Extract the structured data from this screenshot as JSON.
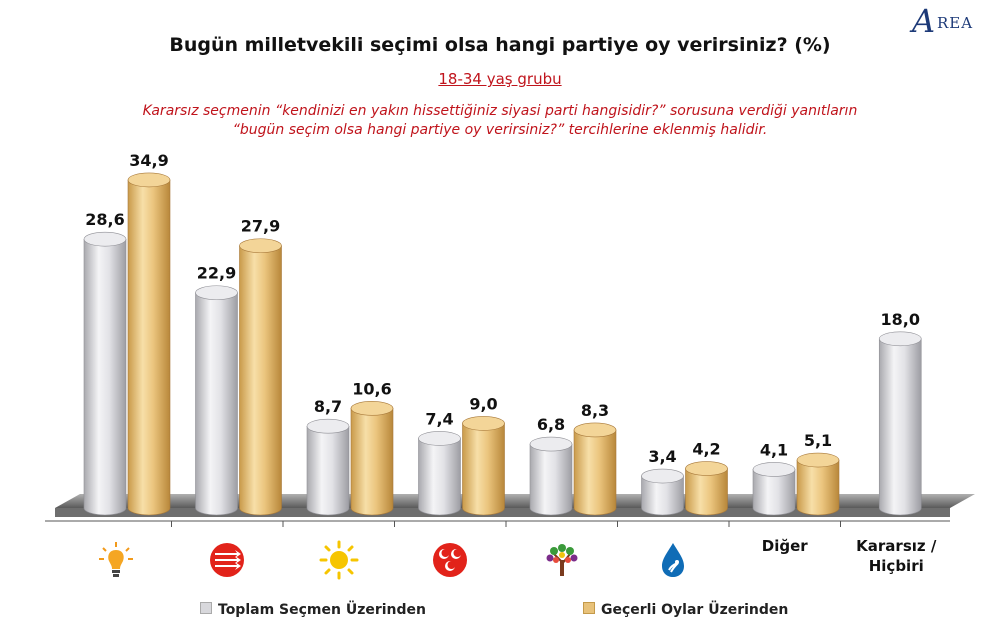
{
  "title": "Bugün milletvekili seçimi olsa hangi partiye oy verirsiniz? (%)",
  "subtitle": "18-34 yaş grubu",
  "note_line1": "Kararsız seçmenin “kendinizi en yakın hissettiğiniz siyasi parti hangisidir?” sorusuna verdiği yanıtların",
  "note_line2": "“bugün seçim olsa hangi partiye oy verirsiniz?” tercihlerine eklenmiş halidir.",
  "logo_text": "REA",
  "logo_letter": "A",
  "colors": {
    "series1": "#d8d8dc",
    "series2": "#e8c27a",
    "subtitle": "#c0141c",
    "floor": "#8a8a8a"
  },
  "chart_data": {
    "type": "bar",
    "categories": [
      "AK Parti",
      "CHP",
      "Saadet",
      "MHP",
      "HDP",
      "DEVA",
      "Diğer",
      "Kararsız / Hiçbiri"
    ],
    "category_icons": [
      "light-bulb-icon",
      "chp-arrows-icon",
      "sun-icon",
      "mhp-crescents-icon",
      "tree-icon",
      "water-drop-icon",
      "",
      ""
    ],
    "category_labels": [
      "",
      "",
      "",
      "",
      "",
      "",
      "Diğer",
      "Kararsız / Hiçbiri"
    ],
    "series": [
      {
        "name": "Toplam Seçmen Üzerinden",
        "values": [
          28.6,
          22.9,
          8.7,
          7.4,
          6.8,
          3.4,
          4.1,
          18.0
        ],
        "labels": [
          "28,6",
          "22,9",
          "8,7",
          "7,4",
          "6,8",
          "3,4",
          "4,1",
          "18,0"
        ]
      },
      {
        "name": "Geçerli Oylar Üzerinden",
        "values": [
          34.9,
          27.9,
          10.6,
          9.0,
          8.3,
          4.2,
          5.1,
          null
        ],
        "labels": [
          "34,9",
          "27,9",
          "10,6",
          "9,0",
          "8,3",
          "4,2",
          "5,1",
          ""
        ]
      }
    ],
    "ylim": [
      0,
      35
    ],
    "grid": false,
    "legend_position": "bottom"
  }
}
